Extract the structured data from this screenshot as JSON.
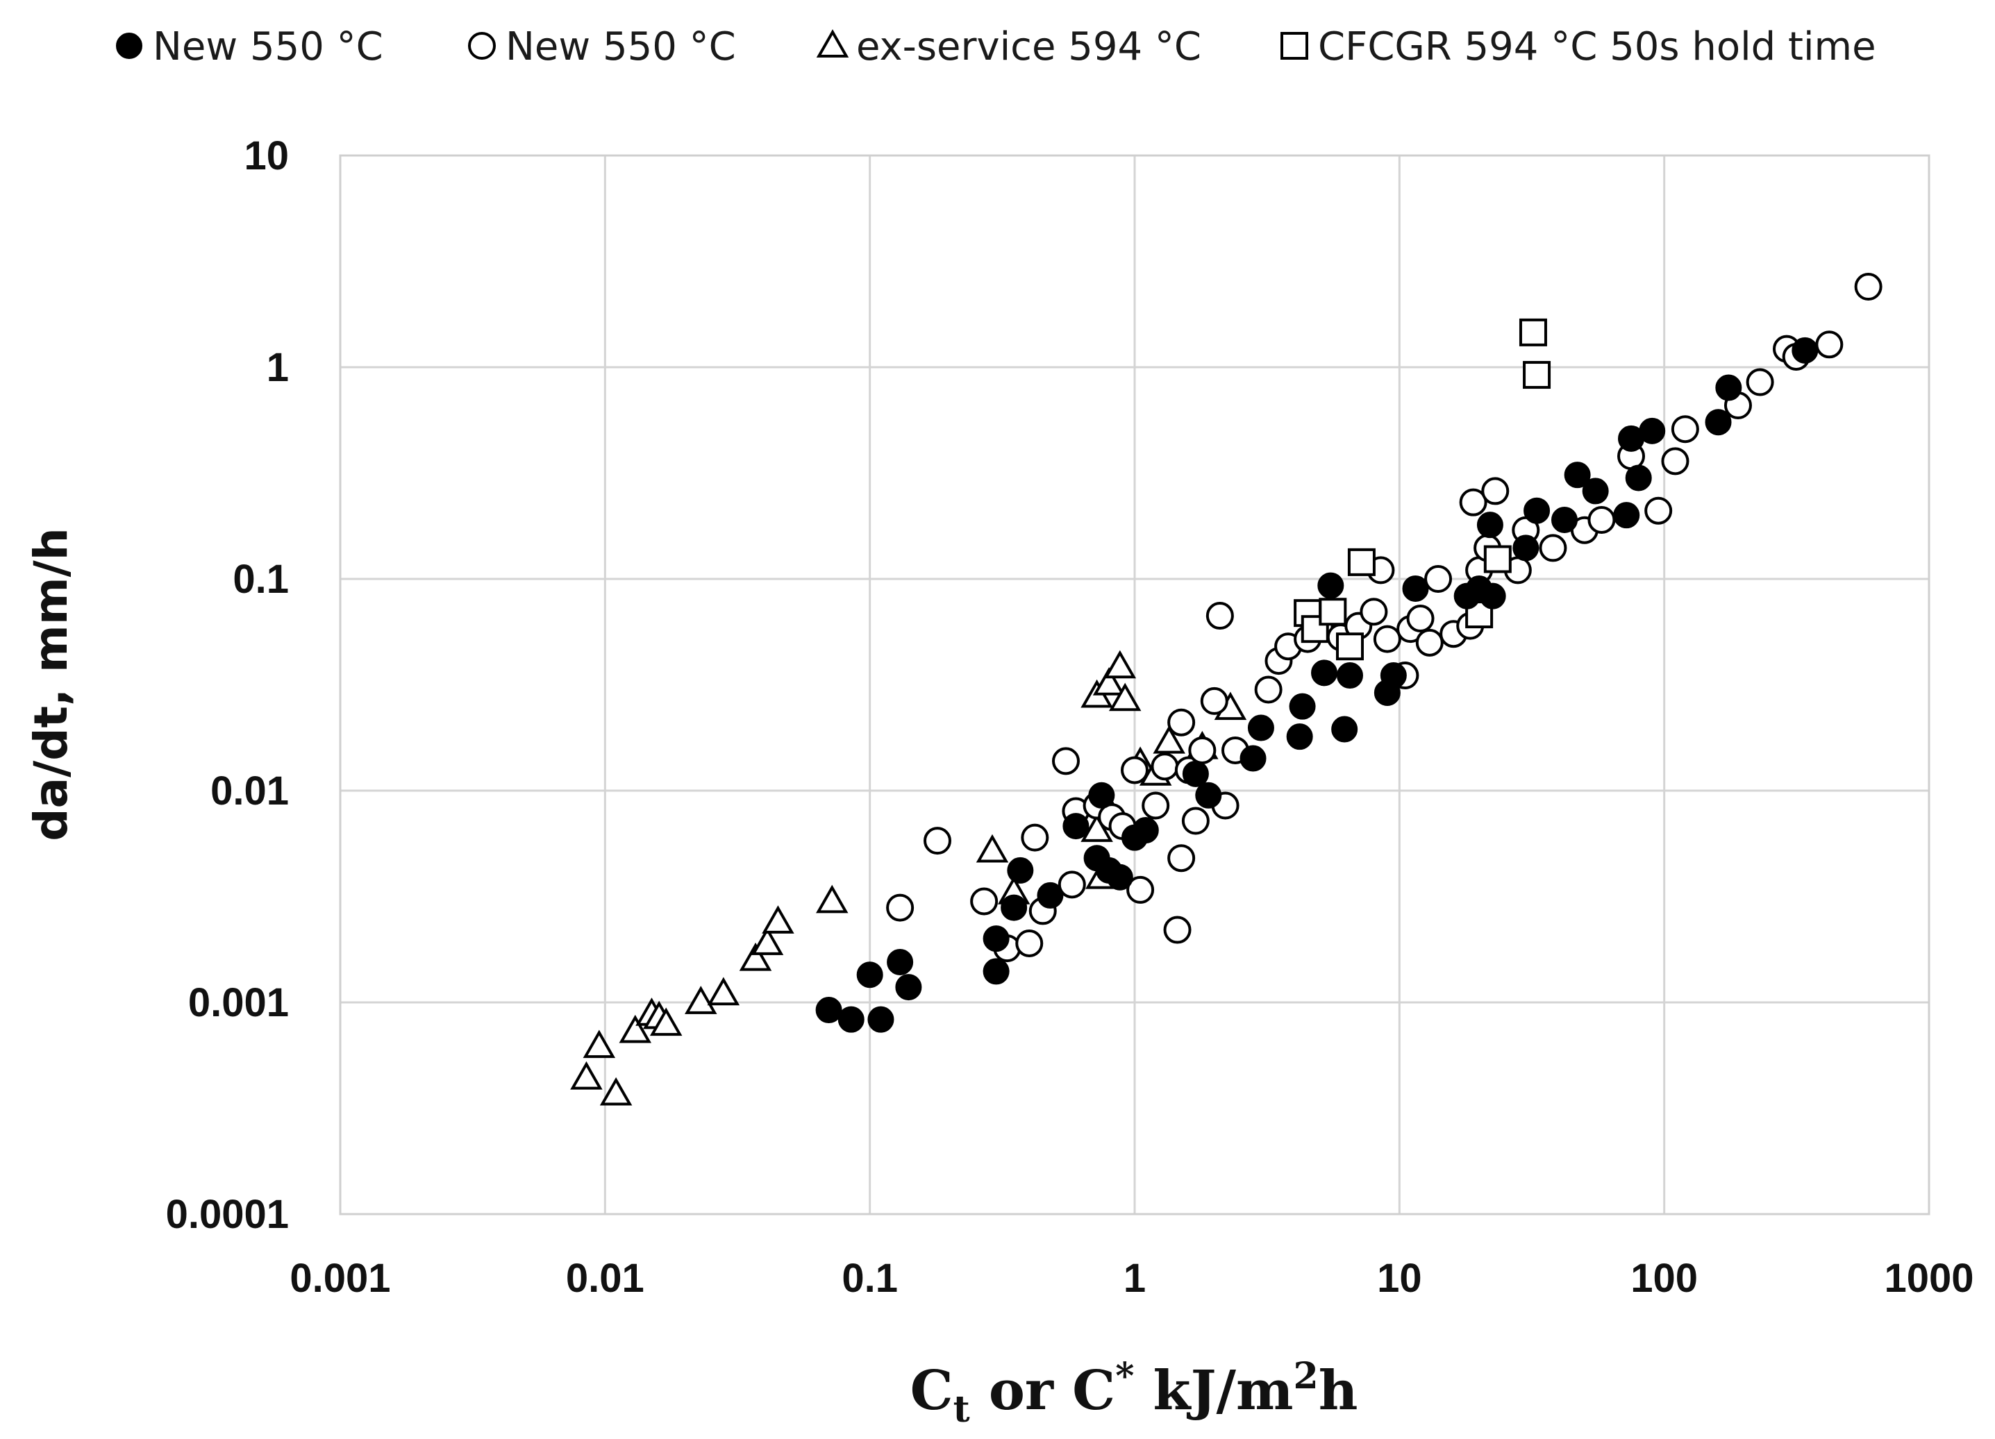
{
  "chart_data": {
    "type": "scatter",
    "x_scale": "log",
    "y_scale": "log",
    "xlim": [
      0.001,
      1000
    ],
    "ylim": [
      0.0001,
      10
    ],
    "x_ticks": [
      "0.001",
      "0.01",
      "0.1",
      "1",
      "10",
      "100",
      "1000"
    ],
    "y_ticks": [
      "0.0001",
      "0.001",
      "0.01",
      "0.1",
      "1",
      "10"
    ],
    "x_tick_values": [
      0.001,
      0.01,
      0.1,
      1,
      10,
      100,
      1000
    ],
    "y_tick_values": [
      0.0001,
      0.001,
      0.01,
      0.1,
      1,
      10
    ],
    "xlabel": {
      "main": "C",
      "sub": "t",
      "middle": " or C",
      "sup": "*",
      "unit": " kJ/m",
      "unit_sup": "2",
      "end": "h"
    },
    "ylabel": "da/dt, mm/h",
    "grid": true,
    "legend_position": "top",
    "colors": {
      "axis_text": "#111111",
      "grid": "#d4d4d4",
      "marker": "#000000"
    },
    "series": [
      {
        "name": "New 550 °C",
        "marker": "filled-circle",
        "points": [
          [
            0.07,
            0.00092
          ],
          [
            0.085,
            0.00083
          ],
          [
            0.1,
            0.00135
          ],
          [
            0.11,
            0.00083
          ],
          [
            0.13,
            0.00155
          ],
          [
            0.14,
            0.00118
          ],
          [
            0.3,
            0.0014
          ],
          [
            0.3,
            0.002
          ],
          [
            0.35,
            0.0028
          ],
          [
            0.37,
            0.0042
          ],
          [
            0.48,
            0.0032
          ],
          [
            0.6,
            0.0068
          ],
          [
            0.72,
            0.0048
          ],
          [
            0.75,
            0.0095
          ],
          [
            0.8,
            0.0042
          ],
          [
            0.88,
            0.0039
          ],
          [
            1.0,
            0.006
          ],
          [
            1.1,
            0.0065
          ],
          [
            1.7,
            0.012
          ],
          [
            1.9,
            0.0095
          ],
          [
            2.8,
            0.0142
          ],
          [
            3.0,
            0.0198
          ],
          [
            4.2,
            0.018
          ],
          [
            4.3,
            0.025
          ],
          [
            5.2,
            0.036
          ],
          [
            5.5,
            0.093
          ],
          [
            6.2,
            0.0195
          ],
          [
            6.5,
            0.035
          ],
          [
            9.0,
            0.029
          ],
          [
            9.5,
            0.035
          ],
          [
            11.5,
            0.09
          ],
          [
            18.0,
            0.083
          ],
          [
            20.0,
            0.09
          ],
          [
            22.0,
            0.18
          ],
          [
            22.5,
            0.083
          ],
          [
            30.0,
            0.14
          ],
          [
            33.0,
            0.21
          ],
          [
            42.0,
            0.19
          ],
          [
            47.0,
            0.31
          ],
          [
            55.0,
            0.26
          ],
          [
            72.0,
            0.2
          ],
          [
            75.0,
            0.46
          ],
          [
            80.0,
            0.3
          ],
          [
            90.0,
            0.5
          ],
          [
            160.0,
            0.55
          ],
          [
            175.0,
            0.8
          ],
          [
            340.0,
            1.2
          ]
        ]
      },
      {
        "name": "New 550 °C",
        "marker": "open-circle",
        "points": [
          [
            0.13,
            0.0028
          ],
          [
            0.18,
            0.0058
          ],
          [
            0.27,
            0.003
          ],
          [
            0.33,
            0.0018
          ],
          [
            0.4,
            0.0019
          ],
          [
            0.42,
            0.006
          ],
          [
            0.45,
            0.0027
          ],
          [
            0.55,
            0.0138
          ],
          [
            0.58,
            0.0036
          ],
          [
            0.6,
            0.008
          ],
          [
            0.72,
            0.0085
          ],
          [
            0.82,
            0.0075
          ],
          [
            0.9,
            0.0068
          ],
          [
            1.0,
            0.0125
          ],
          [
            1.05,
            0.0034
          ],
          [
            1.2,
            0.0085
          ],
          [
            1.3,
            0.013
          ],
          [
            1.45,
            0.0022
          ],
          [
            1.5,
            0.0048
          ],
          [
            1.5,
            0.021
          ],
          [
            1.6,
            0.0125
          ],
          [
            1.7,
            0.0072
          ],
          [
            1.8,
            0.0155
          ],
          [
            2.0,
            0.0265
          ],
          [
            2.1,
            0.067
          ],
          [
            2.2,
            0.0085
          ],
          [
            2.4,
            0.0155
          ],
          [
            3.2,
            0.03
          ],
          [
            3.5,
            0.041
          ],
          [
            3.8,
            0.048
          ],
          [
            4.5,
            0.052
          ],
          [
            5.0,
            0.06
          ],
          [
            6.0,
            0.053
          ],
          [
            7.0,
            0.06
          ],
          [
            8.0,
            0.07
          ],
          [
            8.5,
            0.11
          ],
          [
            9.0,
            0.052
          ],
          [
            10.5,
            0.035
          ],
          [
            11.0,
            0.058
          ],
          [
            12.0,
            0.065
          ],
          [
            13.0,
            0.05
          ],
          [
            14.0,
            0.1
          ],
          [
            16.0,
            0.055
          ],
          [
            18.5,
            0.06
          ],
          [
            19.0,
            0.23
          ],
          [
            20.0,
            0.11
          ],
          [
            21.5,
            0.14
          ],
          [
            23.0,
            0.26
          ],
          [
            28.0,
            0.11
          ],
          [
            30.0,
            0.17
          ],
          [
            38.0,
            0.14
          ],
          [
            50.0,
            0.17
          ],
          [
            58.0,
            0.19
          ],
          [
            75.0,
            0.38
          ],
          [
            95.0,
            0.21
          ],
          [
            110.0,
            0.36
          ],
          [
            120.0,
            0.51
          ],
          [
            190.0,
            0.66
          ],
          [
            230.0,
            0.85
          ],
          [
            290.0,
            1.22
          ],
          [
            315.0,
            1.12
          ],
          [
            420.0,
            1.28
          ],
          [
            590.0,
            2.4
          ]
        ]
      },
      {
        "name": "ex-service 594 °C",
        "marker": "open-triangle",
        "points": [
          [
            0.0085,
            0.00044
          ],
          [
            0.0095,
            0.00062
          ],
          [
            0.011,
            0.00037
          ],
          [
            0.013,
            0.00073
          ],
          [
            0.015,
            0.00088
          ],
          [
            0.016,
            0.00085
          ],
          [
            0.017,
            0.00079
          ],
          [
            0.023,
            0.001
          ],
          [
            0.028,
            0.0011
          ],
          [
            0.037,
            0.0016
          ],
          [
            0.041,
            0.0019
          ],
          [
            0.045,
            0.0024
          ],
          [
            0.072,
            0.003
          ],
          [
            0.29,
            0.0052
          ],
          [
            0.35,
            0.0033
          ],
          [
            0.72,
            0.0065
          ],
          [
            0.72,
            0.028
          ],
          [
            0.75,
            0.0039
          ],
          [
            0.78,
            0.0085
          ],
          [
            0.8,
            0.032
          ],
          [
            0.88,
            0.0385
          ],
          [
            0.92,
            0.027
          ],
          [
            1.05,
            0.0135
          ],
          [
            1.2,
            0.012
          ],
          [
            1.35,
            0.017
          ],
          [
            1.8,
            0.016
          ],
          [
            2.3,
            0.0245
          ]
        ]
      },
      {
        "name": "CFCGR 594 °C 50s hold time",
        "marker": "open-square",
        "points": [
          [
            4.5,
            0.069
          ],
          [
            4.8,
            0.058
          ],
          [
            5.6,
            0.07
          ],
          [
            6.5,
            0.048
          ],
          [
            7.2,
            0.12
          ],
          [
            20.0,
            0.068
          ],
          [
            23.5,
            0.124
          ],
          [
            32.0,
            1.46
          ],
          [
            33.0,
            0.92
          ]
        ]
      }
    ]
  }
}
